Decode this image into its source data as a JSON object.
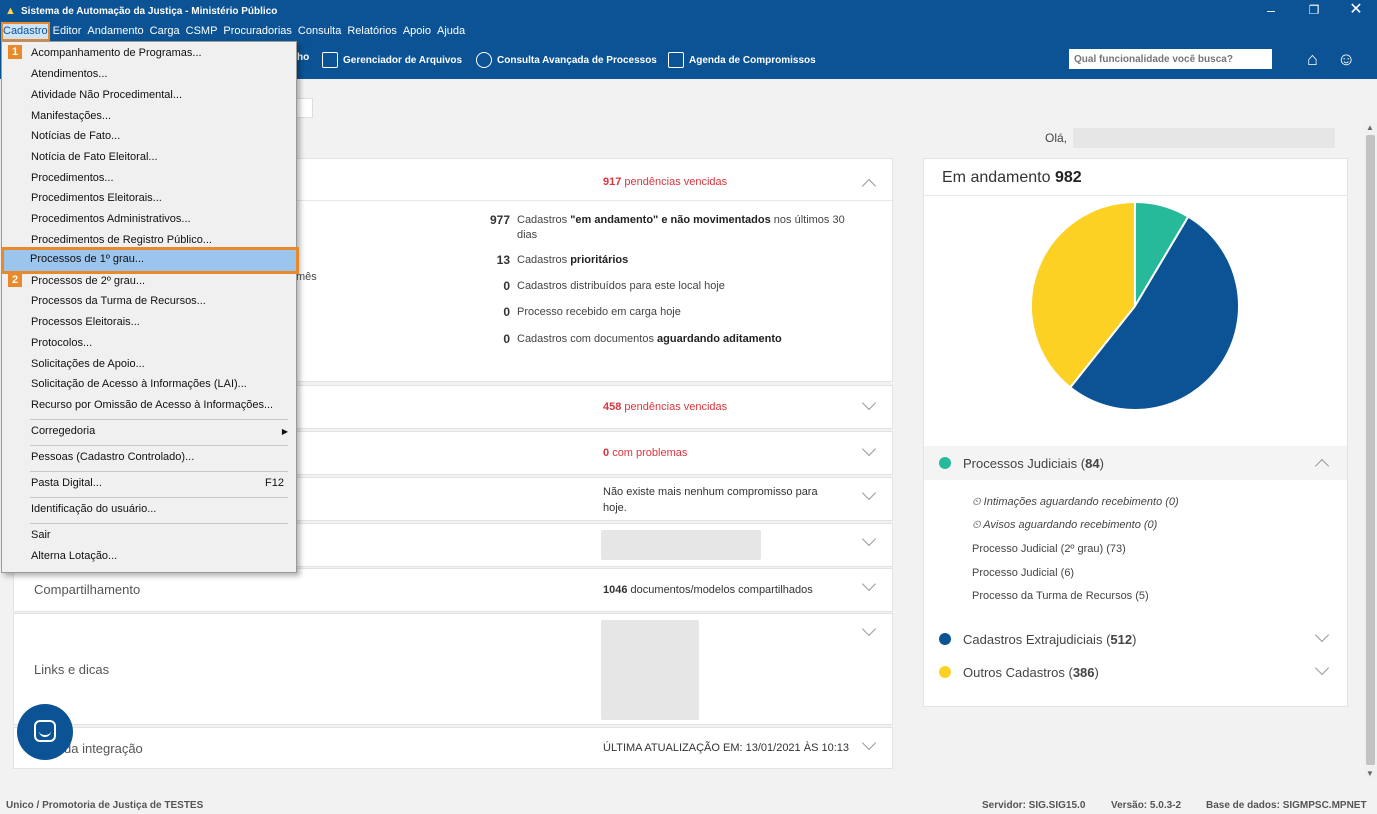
{
  "window": {
    "title": "Sistema de Automação da Justiça - Ministério Público",
    "min_glyph": "–",
    "max_glyph": "❐",
    "close_glyph": "✕"
  },
  "menubar": [
    "Cadastro",
    "Editor",
    "Andamento",
    "Carga",
    "CSMP",
    "Procuradorias",
    "Consulta",
    "Relatórios",
    "Apoio",
    "Ajuda"
  ],
  "toolbar": {
    "partial_label": "ho",
    "items": [
      "Gerenciador de Arquivos",
      "Consulta Avançada de Processos",
      "Agenda de Compromissos"
    ],
    "search_placeholder": "Qual funcionalidade você busca?",
    "home_icon": "home-icon",
    "users_icon": "users-icon"
  },
  "dropdown": {
    "items": [
      {
        "label": "Acompanhamento de Programas..."
      },
      {
        "label": "Atendimentos..."
      },
      {
        "label": "Atividade Não Procedimental..."
      },
      {
        "label": "Manifestações..."
      },
      {
        "label": "Notícias de Fato..."
      },
      {
        "label": "Notícia de Fato Eleitoral..."
      },
      {
        "label": "Procedimentos..."
      },
      {
        "label": "Procedimentos Eleitorais..."
      },
      {
        "label": "Procedimentos Administrativos..."
      },
      {
        "label": "Procedimentos de Registro Público..."
      },
      {
        "label": "Processos de 1º grau..."
      },
      {
        "label": "Processos de 2º grau..."
      },
      {
        "label": "Processos da Turma de Recursos..."
      },
      {
        "label": "Processos Eleitorais..."
      },
      {
        "label": "Protocolos..."
      },
      {
        "label": "Solicitações de Apoio..."
      },
      {
        "label": "Solicitação de Acesso à Informações (LAI)..."
      },
      {
        "label": "Recurso por Omissão de Acesso à Informações..."
      },
      {
        "label": "Corregedoria",
        "arrow": "▶"
      },
      {
        "label": "Pessoas (Cadastro Controlado)..."
      },
      {
        "label": "Pasta Digital...",
        "shortcut": "F12"
      },
      {
        "label": "Identificação do usuário..."
      },
      {
        "label": "Sair"
      },
      {
        "label": "Alterna Lotação..."
      }
    ],
    "badge1": "1",
    "badge2": "2"
  },
  "greeting": "Olá,",
  "panel1": {
    "status_num": "917",
    "status_text": "pendências vencidas",
    "partial_text": "mês",
    "stats": [
      {
        "num": "977",
        "pre": "Cadastros ",
        "bold": "\"em andamento\" e não movimentados",
        "post": " nos últimos 30 dias"
      },
      {
        "num": "13",
        "pre": "Cadastros ",
        "bold": "prioritários",
        "post": ""
      },
      {
        "num": "0",
        "pre": "Cadastros distribuídos para este local hoje",
        "bold": "",
        "post": ""
      },
      {
        "num": "0",
        "pre": "Processo recebido em carga hoje",
        "bold": "",
        "post": ""
      },
      {
        "num": "0",
        "pre": "Cadastros com documentos ",
        "bold": "aguardando aditamento",
        "post": ""
      }
    ]
  },
  "panel2": {
    "status_num": "458",
    "status_text": "pendências vencidas"
  },
  "panel3": {
    "status_num": "0",
    "status_text": "com problemas"
  },
  "panel4": {
    "status_text": "Não existe mais nenhum compromisso para hoje."
  },
  "compartilhamento": {
    "label": "Compartilhamento",
    "num": "1046",
    "text": "documentos/modelos compartilhados"
  },
  "links": {
    "label": "Links e dicas"
  },
  "integracao": {
    "label": "da integração",
    "status": "ÚLTIMA ATUALIZAÇÃO EM: 13/01/2021 ÀS 10:13"
  },
  "right_panel": {
    "title_prefix": "Em andamento",
    "title_count": "982",
    "categories": [
      {
        "name": "Processos Judiciais",
        "count": "84",
        "color": "#26b99a"
      },
      {
        "name": "Cadastros Extrajudiciais",
        "count": "512",
        "color": "#0b5394"
      },
      {
        "name": "Outros Cadastros",
        "count": "386",
        "color": "#fcd123"
      }
    ],
    "sub_items": [
      "Intimações aguardando recebimento (0)",
      "Avisos aguardando recebimento (0)",
      "Processo Judicial (2º grau) (73)",
      "Processo Judicial (6)",
      "Processo da Turma de Recursos (5)"
    ]
  },
  "chart_data": {
    "type": "pie",
    "categories": [
      "Processos Judiciais",
      "Cadastros Extrajudiciais",
      "Outros Cadastros"
    ],
    "values": [
      84,
      512,
      386
    ],
    "colors": [
      "#26b99a",
      "#0b5394",
      "#fcd123"
    ]
  },
  "statusbar": {
    "left": "Unico / Promotoria de Justiça de TESTES",
    "server": "Servidor: SIG.SIG15.0",
    "version": "Versão: 5.0.3-2",
    "database": "Base de dados: SIGMPSC.MPNET"
  }
}
